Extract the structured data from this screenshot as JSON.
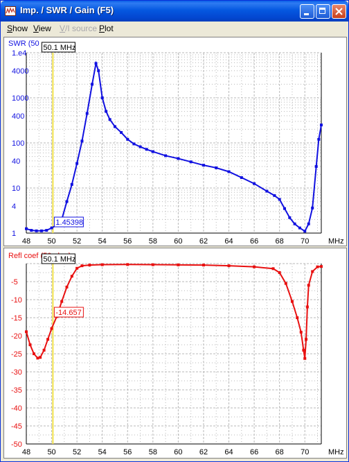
{
  "window": {
    "title": "Imp. / SWR / Gain   (F5)"
  },
  "menu": [
    {
      "label": "Show",
      "accel": "S",
      "enabled": true
    },
    {
      "label": "View",
      "accel": "V",
      "enabled": true
    },
    {
      "label": "V/I source",
      "accel": "V",
      "enabled": false
    },
    {
      "label": "Plot",
      "accel": "P",
      "enabled": true
    }
  ],
  "colors": {
    "swr_series": "#1010E0",
    "refl_series": "#E81010",
    "cursor": "#F2E24A",
    "grid": "#B8B8B8"
  },
  "cursor": {
    "frequency_label": "50.1 MHz",
    "frequency_mhz": 50.1
  },
  "chart_data": [
    {
      "type": "line",
      "title": "SWR (50",
      "ylabel": "",
      "xlabel": "MHz",
      "x_ticks": [
        "48",
        "50",
        "52",
        "54",
        "56",
        "58",
        "60",
        "62",
        "64",
        "66",
        "68",
        "70"
      ],
      "xlim": [
        48,
        71.3
      ],
      "y_scale": "log",
      "y_tick_labels": [
        "1.e4",
        "4000",
        "1000",
        "400",
        "100",
        "40",
        "10",
        "4",
        "1"
      ],
      "y_tick_values": [
        10000,
        4000,
        1000,
        400,
        100,
        40,
        10,
        4,
        1
      ],
      "ylim": [
        1,
        10000
      ],
      "grid": true,
      "cursor_value": "1.45398",
      "series": [
        {
          "x": [
            48.0,
            48.4,
            48.8,
            49.2,
            49.6,
            50.0,
            50.4,
            50.8,
            51.2,
            51.6,
            52.0,
            52.4,
            52.8,
            53.2,
            53.5,
            53.7,
            54.0,
            54.3,
            54.6,
            55.0,
            55.5,
            56.0,
            56.5,
            57.0,
            57.5,
            58.0,
            59.0,
            60.0,
            61.0,
            62.0,
            63.0,
            64.0,
            65.0,
            66.0,
            67.0,
            67.6,
            68.0,
            68.4,
            68.8,
            69.2,
            69.6,
            70.0,
            70.3,
            70.6,
            70.9,
            71.1,
            71.3
          ],
          "y": [
            1.25,
            1.15,
            1.12,
            1.12,
            1.15,
            1.3,
            1.5,
            2.0,
            5.0,
            12,
            35,
            110,
            450,
            2000,
            5800,
            4000,
            1000,
            500,
            330,
            230,
            170,
            120,
            95,
            82,
            72,
            64,
            52,
            45,
            38,
            32,
            28,
            23,
            17,
            12.5,
            8.5,
            6.8,
            5.6,
            3.5,
            2.2,
            1.6,
            1.3,
            1.1,
            1.6,
            3.6,
            30,
            120,
            250
          ]
        }
      ]
    },
    {
      "type": "line",
      "title": "Refl coef (50 ohm)",
      "ylabel": "",
      "xlabel": "MHz",
      "x_ticks": [
        "48",
        "50",
        "52",
        "54",
        "56",
        "58",
        "60",
        "62",
        "64",
        "66",
        "68",
        "70"
      ],
      "xlim": [
        48,
        71.3
      ],
      "y_tick_labels": [
        "-5",
        "-10",
        "-15",
        "-20",
        "-25",
        "-30",
        "-35",
        "-40",
        "-45",
        "-50"
      ],
      "y_tick_values": [
        -5,
        -10,
        -15,
        -20,
        -25,
        -30,
        -35,
        -40,
        -45,
        -50
      ],
      "ylim": [
        -50,
        0
      ],
      "grid": true,
      "cursor_value": "-14.657",
      "series": [
        {
          "x": [
            48.0,
            48.3,
            48.6,
            48.9,
            49.1,
            49.4,
            49.7,
            50.0,
            50.4,
            50.8,
            51.2,
            51.6,
            52.0,
            52.4,
            53.0,
            54.0,
            56.0,
            58.0,
            60.0,
            62.0,
            64.0,
            66.0,
            67.5,
            68.0,
            68.5,
            69.0,
            69.4,
            69.7,
            69.9,
            70.0,
            70.1,
            70.2,
            70.3,
            70.6,
            71.0,
            71.3
          ],
          "y": [
            -18.9,
            -22.5,
            -25.0,
            -26.2,
            -26.0,
            -24.0,
            -21.0,
            -18.0,
            -14.7,
            -10.5,
            -6.5,
            -3.5,
            -1.3,
            -0.6,
            -0.4,
            -0.3,
            -0.25,
            -0.3,
            -0.35,
            -0.4,
            -0.6,
            -0.9,
            -1.4,
            -2.5,
            -5.5,
            -10.5,
            -15,
            -19,
            -24,
            -26.3,
            -21,
            -12,
            -6,
            -2.2,
            -0.9,
            -0.8
          ]
        }
      ]
    }
  ]
}
